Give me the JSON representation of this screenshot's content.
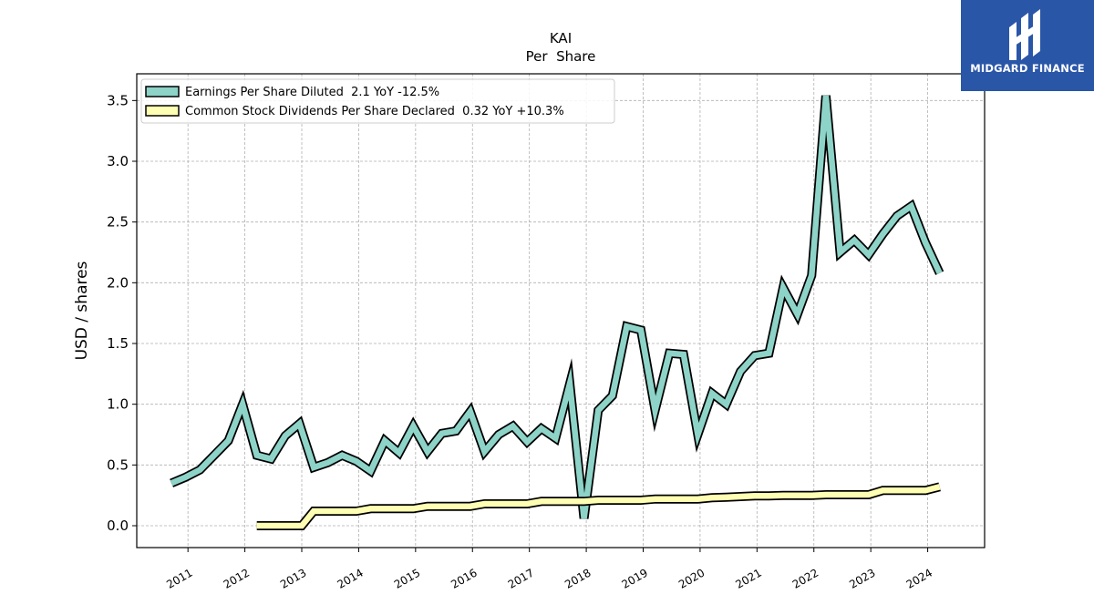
{
  "chart_data": {
    "type": "line",
    "title": "KAI",
    "subtitle": "Per  Share",
    "ylabel": "USD / shares",
    "xlabel": "",
    "xlim": [
      2010.1,
      2025.0
    ],
    "ylim": [
      -0.18,
      3.72
    ],
    "yticks": [
      0.0,
      0.5,
      1.0,
      1.5,
      2.0,
      2.5,
      3.0,
      3.5
    ],
    "ytick_labels": [
      "0.0",
      "0.5",
      "1.0",
      "1.5",
      "2.0",
      "2.5",
      "3.0",
      "3.5"
    ],
    "xticks": [
      2011,
      2012,
      2013,
      2014,
      2015,
      2016,
      2017,
      2018,
      2019,
      2020,
      2021,
      2022,
      2023,
      2024
    ],
    "xtick_labels": [
      "2011",
      "2012",
      "2013",
      "2014",
      "2015",
      "2016",
      "2017",
      "2018",
      "2019",
      "2020",
      "2021",
      "2022",
      "2023",
      "2024"
    ],
    "grid": true,
    "legend_position": "top-left",
    "series": [
      {
        "name": "Earnings Per Share Diluted  2.1 YoY -12.5%",
        "color": "#8dd3c7",
        "x": [
          2010.71,
          2010.96,
          2011.21,
          2011.46,
          2011.71,
          2011.96,
          2012.21,
          2012.46,
          2012.71,
          2012.96,
          2013.21,
          2013.46,
          2013.71,
          2013.96,
          2014.21,
          2014.46,
          2014.71,
          2014.96,
          2015.21,
          2015.46,
          2015.71,
          2015.96,
          2016.21,
          2016.46,
          2016.71,
          2016.96,
          2017.21,
          2017.46,
          2017.71,
          2017.96,
          2018.21,
          2018.46,
          2018.71,
          2018.96,
          2019.21,
          2019.46,
          2019.71,
          2019.96,
          2020.21,
          2020.46,
          2020.71,
          2020.96,
          2021.21,
          2021.46,
          2021.71,
          2021.96,
          2022.21,
          2022.46,
          2022.71,
          2022.96,
          2023.21,
          2023.46,
          2023.71,
          2023.96,
          2024.21
        ],
        "y": [
          0.35,
          0.4,
          0.46,
          0.58,
          0.7,
          1.0,
          0.58,
          0.55,
          0.74,
          0.84,
          0.48,
          0.52,
          0.58,
          0.53,
          0.45,
          0.7,
          0.6,
          0.82,
          0.61,
          0.76,
          0.78,
          0.94,
          0.61,
          0.75,
          0.82,
          0.69,
          0.8,
          0.72,
          1.17,
          0.06,
          0.95,
          1.07,
          1.64,
          1.61,
          0.95,
          1.42,
          1.41,
          0.75,
          1.09,
          1.0,
          1.27,
          1.4,
          1.42,
          1.96,
          1.74,
          2.06,
          3.54,
          2.25,
          2.35,
          2.23,
          2.4,
          2.55,
          2.63,
          2.33,
          2.08
        ]
      },
      {
        "name": "Common Stock Dividends Per Share Declared  0.32 YoY +10.3%",
        "color": "#ffffb3",
        "x": [
          2012.21,
          2012.46,
          2012.71,
          2012.96,
          2013.0,
          2013.21,
          2013.46,
          2013.71,
          2013.96,
          2014.21,
          2014.46,
          2014.71,
          2014.96,
          2015.21,
          2015.46,
          2015.71,
          2015.96,
          2016.21,
          2016.46,
          2016.71,
          2016.96,
          2017.21,
          2017.46,
          2017.71,
          2017.96,
          2018.21,
          2018.46,
          2018.71,
          2018.96,
          2019.21,
          2019.46,
          2019.71,
          2019.96,
          2020.21,
          2020.46,
          2020.71,
          2020.96,
          2021.21,
          2021.46,
          2021.71,
          2021.96,
          2022.21,
          2022.46,
          2022.71,
          2022.96,
          2023.21,
          2023.46,
          2023.71,
          2023.96,
          2024.21
        ],
        "y": [
          0.0,
          0.0,
          0.0,
          0.0,
          0.0,
          0.12,
          0.12,
          0.12,
          0.12,
          0.14,
          0.14,
          0.14,
          0.14,
          0.16,
          0.16,
          0.16,
          0.16,
          0.18,
          0.18,
          0.18,
          0.18,
          0.2,
          0.2,
          0.2,
          0.2,
          0.21,
          0.21,
          0.21,
          0.21,
          0.22,
          0.22,
          0.22,
          0.22,
          0.23,
          0.235,
          0.24,
          0.245,
          0.245,
          0.25,
          0.25,
          0.25,
          0.255,
          0.255,
          0.255,
          0.255,
          0.29,
          0.29,
          0.29,
          0.29,
          0.32
        ]
      }
    ]
  },
  "logo": {
    "text": "MIDGARD FINANCE"
  }
}
